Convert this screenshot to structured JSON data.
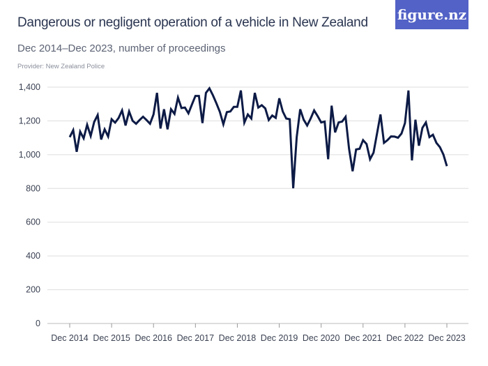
{
  "title": "Dangerous or negligent operation of a vehicle in New Zealand",
  "subtitle": "Dec 2014–Dec 2023, number of proceedings",
  "provider": "Provider: New Zealand Police",
  "logo_text": "figure.nz",
  "colors": {
    "line": "#0c1a45",
    "logo_bg": "#5262c6",
    "grid": "#dddddd"
  },
  "chart_data": {
    "type": "line",
    "title": "Dangerous or negligent operation of a vehicle in New Zealand",
    "xlabel": "",
    "ylabel": "",
    "ylim": [
      0,
      1400
    ],
    "y_ticks": [
      "0",
      "200",
      "400",
      "600",
      "800",
      "1,000",
      "1,200",
      "1,400"
    ],
    "x_ticks": [
      "Dec 2014",
      "Dec 2015",
      "Dec 2016",
      "Dec 2017",
      "Dec 2018",
      "Dec 2019",
      "Dec 2020",
      "Dec 2021",
      "Dec 2022",
      "Dec 2023"
    ],
    "x_range": [
      "Dec 2014",
      "Dec 2023"
    ],
    "frequency": "monthly",
    "grid": true,
    "values": [
      1104,
      1145,
      1017,
      1136,
      1097,
      1177,
      1111,
      1194,
      1235,
      1090,
      1150,
      1108,
      1210,
      1190,
      1217,
      1262,
      1173,
      1256,
      1201,
      1183,
      1205,
      1225,
      1205,
      1183,
      1238,
      1366,
      1155,
      1269,
      1150,
      1269,
      1242,
      1338,
      1276,
      1279,
      1245,
      1297,
      1348,
      1348,
      1187,
      1366,
      1393,
      1352,
      1304,
      1253,
      1180,
      1252,
      1256,
      1283,
      1283,
      1380,
      1190,
      1238,
      1214,
      1366,
      1279,
      1293,
      1274,
      1205,
      1232,
      1218,
      1334,
      1256,
      1214,
      1210,
      801,
      1104,
      1269,
      1207,
      1173,
      1214,
      1262,
      1228,
      1191,
      1196,
      973,
      1290,
      1132,
      1191,
      1196,
      1224,
      1035,
      902,
      1031,
      1035,
      1086,
      1063,
      973,
      1012,
      1125,
      1238,
      1070,
      1086,
      1108,
      1107,
      1100,
      1125,
      1187,
      1380,
      966,
      1207,
      1053,
      1159,
      1191,
      1104,
      1118,
      1070,
      1045,
      1001,
      932
    ]
  }
}
